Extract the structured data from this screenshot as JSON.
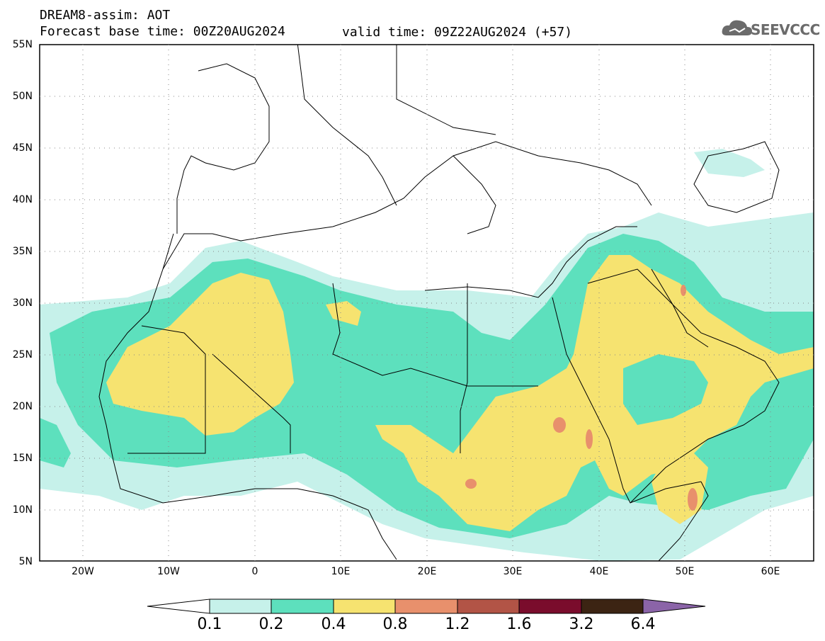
{
  "header": {
    "title_line1": "DREAM8-assim: AOT",
    "title_line2": "Forecast base time: 00Z20AUG2024",
    "valid_time": "valid time: 09Z22AUG2024 (+57)"
  },
  "logo": {
    "text": "SEEVCCC",
    "icon": "cloud-logo-icon"
  },
  "map": {
    "lat_labels": [
      "55N",
      "50N",
      "45N",
      "40N",
      "35N",
      "30N",
      "25N",
      "20N",
      "15N",
      "10N",
      "5N"
    ],
    "lon_labels": [
      "20W",
      "10W",
      "0",
      "10E",
      "20E",
      "30E",
      "40E",
      "50E",
      "60E"
    ],
    "lat_range": [
      5,
      55
    ],
    "lon_range": [
      -25,
      65
    ]
  },
  "colorbar": {
    "labels": [
      "0.1",
      "0.2",
      "0.4",
      "0.8",
      "1.2",
      "1.6",
      "3.2",
      "6.4"
    ],
    "colors": [
      "#ffffff",
      "#c6f1ea",
      "#5de0bd",
      "#f6e370",
      "#e8906c",
      "#b25446",
      "#7a0c2c",
      "#3c2413",
      "#8b64a8"
    ]
  },
  "colors": {
    "level_0_1": "#c6f1ea",
    "level_0_2": "#5de0bd",
    "level_0_4": "#f6e370",
    "level_0_8": "#e8906c"
  }
}
